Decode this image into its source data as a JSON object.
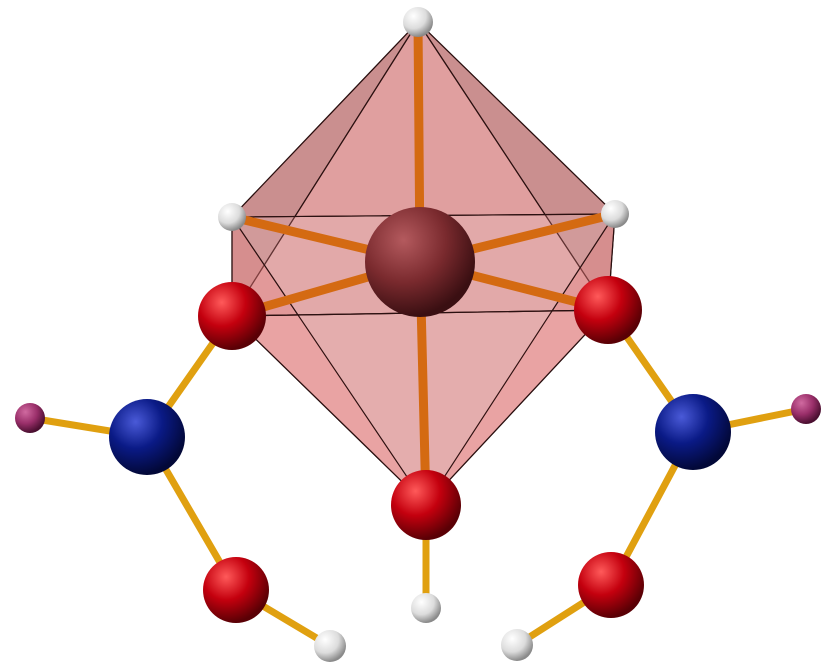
{
  "figure": {
    "kind": "molecular-structure",
    "coordination_polyhedron": "octahedron",
    "atom_colors": {
      "metal": "#7a2a2e",
      "oxygen": "#c4000e",
      "nitrogen": "#0a1a86",
      "hydrogen": "#e6e6e6",
      "small_magenta": "#9a2f6a"
    },
    "bond_colors": {
      "metal_bond": "#d46a12",
      "ligand_bond": "#e0a010"
    },
    "polyhedron_fill": "#d96a6a",
    "polyhedron_edge": "#2a1010"
  }
}
